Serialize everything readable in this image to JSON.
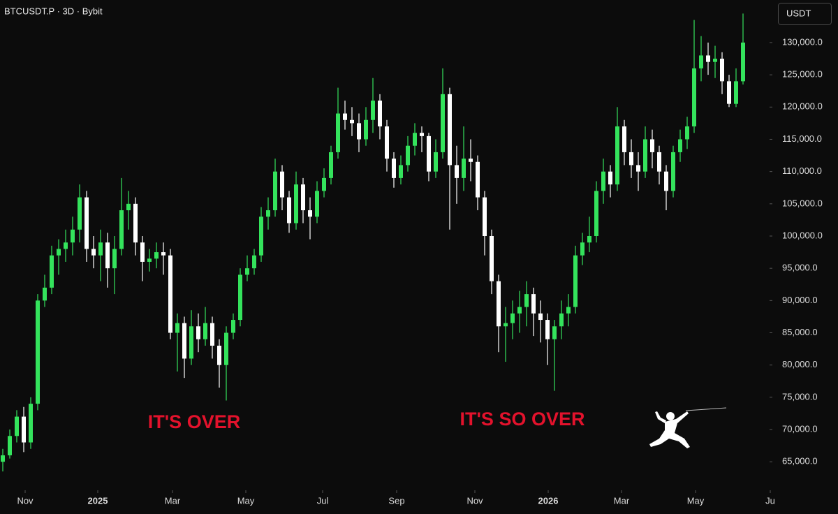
{
  "chart_data": {
    "type": "candlestick",
    "title": "BTCUSDT.P · 3D · Bybit",
    "currency": "USDT",
    "up_color": "#34e35c",
    "down_color": "#ffffff",
    "annotations": [
      "IT'S OVER",
      "IT'S SO OVER"
    ],
    "ohlc": [
      [
        65000,
        67000,
        63500,
        66000
      ],
      [
        66000,
        70000,
        65500,
        69000
      ],
      [
        69000,
        73000,
        68000,
        72000
      ],
      [
        72000,
        73500,
        66500,
        68000
      ],
      [
        68000,
        75000,
        67000,
        74000
      ],
      [
        74000,
        91000,
        73000,
        90000
      ],
      [
        90000,
        94000,
        89000,
        92000
      ],
      [
        92000,
        98500,
        91000,
        97000
      ],
      [
        97000,
        99500,
        94000,
        98000
      ],
      [
        98000,
        101000,
        96000,
        99000
      ],
      [
        99000,
        103000,
        97000,
        101000
      ],
      [
        101000,
        108000,
        99000,
        106000
      ],
      [
        106000,
        107000,
        96000,
        98000
      ],
      [
        98000,
        100000,
        95000,
        97000
      ],
      [
        97000,
        101000,
        93000,
        99000
      ],
      [
        99000,
        100500,
        92000,
        95000
      ],
      [
        95000,
        100000,
        91000,
        98000
      ],
      [
        98000,
        109000,
        97000,
        104000
      ],
      [
        104000,
        107000,
        101000,
        105000
      ],
      [
        105000,
        106000,
        97000,
        99000
      ],
      [
        99000,
        100000,
        93000,
        96000
      ],
      [
        96000,
        98000,
        94500,
        96500
      ],
      [
        96500,
        99000,
        95000,
        97500
      ],
      [
        97500,
        99000,
        94000,
        97000
      ],
      [
        97000,
        98000,
        84000,
        85000
      ],
      [
        85000,
        88000,
        79000,
        86500
      ],
      [
        86500,
        87500,
        78000,
        81000
      ],
      [
        81000,
        88500,
        80000,
        86000
      ],
      [
        86000,
        88000,
        82000,
        84000
      ],
      [
        84000,
        89000,
        83000,
        86500
      ],
      [
        86500,
        87500,
        81000,
        83000
      ],
      [
        83000,
        84000,
        76500,
        80000
      ],
      [
        80000,
        86000,
        74500,
        85000
      ],
      [
        85000,
        88000,
        84000,
        87000
      ],
      [
        87000,
        95000,
        86000,
        94000
      ],
      [
        94000,
        97000,
        93000,
        95000
      ],
      [
        95000,
        98000,
        94000,
        97000
      ],
      [
        97000,
        104500,
        96000,
        103000
      ],
      [
        103000,
        106000,
        101000,
        104000
      ],
      [
        104000,
        112000,
        103000,
        110000
      ],
      [
        110000,
        111000,
        104000,
        106000
      ],
      [
        106000,
        107000,
        100500,
        102000
      ],
      [
        102000,
        110000,
        101000,
        108000
      ],
      [
        108000,
        109000,
        102000,
        104000
      ],
      [
        104000,
        106000,
        99500,
        103000
      ],
      [
        103000,
        108500,
        102000,
        107000
      ],
      [
        107000,
        110500,
        106000,
        109000
      ],
      [
        109000,
        114000,
        108000,
        113000
      ],
      [
        113000,
        123000,
        112000,
        119000
      ],
      [
        119000,
        121000,
        116500,
        118000
      ],
      [
        118000,
        120000,
        115500,
        117500
      ],
      [
        117500,
        119000,
        113000,
        115000
      ],
      [
        115000,
        120000,
        114000,
        118000
      ],
      [
        118000,
        124500,
        116000,
        121000
      ],
      [
        121000,
        122000,
        115000,
        117000
      ],
      [
        117000,
        118000,
        110000,
        112000
      ],
      [
        112000,
        113000,
        107500,
        109000
      ],
      [
        109000,
        112500,
        108000,
        111000
      ],
      [
        111000,
        115500,
        110000,
        114000
      ],
      [
        114000,
        117500,
        112500,
        116000
      ],
      [
        116000,
        117000,
        113000,
        115500
      ],
      [
        115500,
        116000,
        108500,
        110000
      ],
      [
        110000,
        115000,
        109000,
        113000
      ],
      [
        113000,
        126000,
        112000,
        122000
      ],
      [
        122000,
        123000,
        101000,
        111000
      ],
      [
        111000,
        114000,
        105000,
        109000
      ],
      [
        109000,
        117000,
        107000,
        112000
      ],
      [
        112000,
        115000,
        108500,
        111500
      ],
      [
        111500,
        112500,
        104000,
        106000
      ],
      [
        106000,
        107000,
        97000,
        100000
      ],
      [
        100000,
        101000,
        91000,
        93000
      ],
      [
        93000,
        94000,
        82000,
        86000
      ],
      [
        86000,
        89000,
        80500,
        86500
      ],
      [
        86500,
        90000,
        84000,
        88000
      ],
      [
        88000,
        91500,
        85000,
        89000
      ],
      [
        89000,
        93000,
        86000,
        91000
      ],
      [
        91000,
        92000,
        84500,
        88000
      ],
      [
        88000,
        90000,
        83500,
        87000
      ],
      [
        87000,
        88000,
        80000,
        84000
      ],
      [
        84000,
        87000,
        76000,
        86000
      ],
      [
        86000,
        90000,
        84000,
        88000
      ],
      [
        88000,
        91000,
        86000,
        89000
      ],
      [
        89000,
        98500,
        88000,
        97000
      ],
      [
        97000,
        100500,
        95500,
        99000
      ],
      [
        99000,
        103000,
        97500,
        100000
      ],
      [
        100000,
        108500,
        99000,
        107000
      ],
      [
        107000,
        112000,
        105000,
        110000
      ],
      [
        110000,
        111000,
        106000,
        108000
      ],
      [
        108000,
        120000,
        107000,
        117000
      ],
      [
        117000,
        118000,
        111000,
        113000
      ],
      [
        113000,
        115000,
        109000,
        111000
      ],
      [
        111000,
        113000,
        107000,
        110000
      ],
      [
        110000,
        117000,
        109000,
        115000
      ],
      [
        115000,
        116500,
        110500,
        113000
      ],
      [
        113000,
        114000,
        108000,
        110000
      ],
      [
        110000,
        111000,
        104000,
        107000
      ],
      [
        107000,
        114000,
        106000,
        113000
      ],
      [
        113000,
        116500,
        111500,
        115000
      ],
      [
        115000,
        118500,
        113500,
        117000
      ],
      [
        117000,
        133500,
        116000,
        126000
      ],
      [
        126000,
        131000,
        124000,
        128000
      ],
      [
        128000,
        130000,
        125000,
        127000
      ],
      [
        127000,
        129500,
        124500,
        127500
      ],
      [
        127500,
        128500,
        122000,
        124000
      ],
      [
        124000,
        125000,
        120000,
        120500
      ],
      [
        120500,
        126000,
        120000,
        124000
      ],
      [
        124000,
        134500,
        123500,
        130000
      ]
    ],
    "xlim": [
      -0.4,
      109.6
    ],
    "xticks": [
      {
        "value": 3.2,
        "label": "Nov"
      },
      {
        "value": 13.6,
        "label": "2025"
      },
      {
        "value": 24.3,
        "label": "Mar"
      },
      {
        "value": 34.8,
        "label": "May"
      },
      {
        "value": 45.8,
        "label": "Jul"
      },
      {
        "value": 56.4,
        "label": "Sep"
      },
      {
        "value": 67.6,
        "label": "Nov"
      },
      {
        "value": 78.1,
        "label": "2026"
      },
      {
        "value": 88.6,
        "label": "Mar"
      },
      {
        "value": 99.2,
        "label": "May"
      },
      {
        "value": 109.9,
        "label": "Ju"
      }
    ],
    "ylim": [
      60800,
      136600
    ],
    "yticks": [
      {
        "value": 65000,
        "label": "65,000.0"
      },
      {
        "value": 70000,
        "label": "70,000.0"
      },
      {
        "value": 75000,
        "label": "75,000.0"
      },
      {
        "value": 80000,
        "label": "80,000.0"
      },
      {
        "value": 85000,
        "label": "85,000.0"
      },
      {
        "value": 90000,
        "label": "90,000.0"
      },
      {
        "value": 95000,
        "label": "95,000.0"
      },
      {
        "value": 100000,
        "label": "100,000.0"
      },
      {
        "value": 105000,
        "label": "105,000.0"
      },
      {
        "value": 110000,
        "label": "110,000.0"
      },
      {
        "value": 115000,
        "label": "115,000.0"
      },
      {
        "value": 120000,
        "label": "120,000.0"
      },
      {
        "value": 125000,
        "label": "125,000.0"
      },
      {
        "value": 130000,
        "label": "130,000.0"
      }
    ]
  }
}
